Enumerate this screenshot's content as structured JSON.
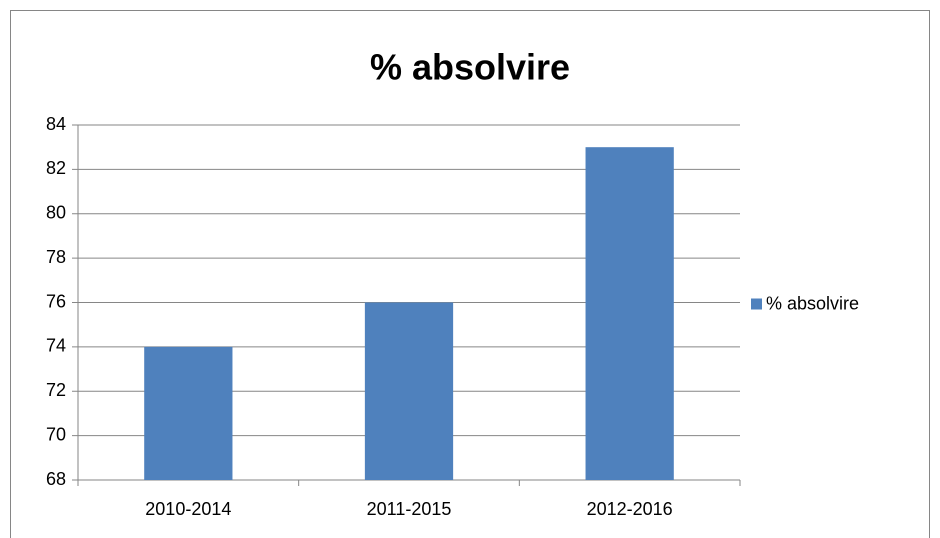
{
  "chart_data": {
    "type": "bar",
    "title": "% absolvire",
    "categories": [
      "2010-2014",
      "2011-2015",
      "2012-2016"
    ],
    "series": [
      {
        "name": "% absolvire",
        "color": "#4f81bd",
        "values": [
          74,
          76,
          83
        ]
      }
    ],
    "ylim": [
      68,
      84
    ],
    "yticks": [
      68,
      70,
      72,
      74,
      76,
      78,
      80,
      82,
      84
    ],
    "grid": true,
    "legend": "right"
  }
}
